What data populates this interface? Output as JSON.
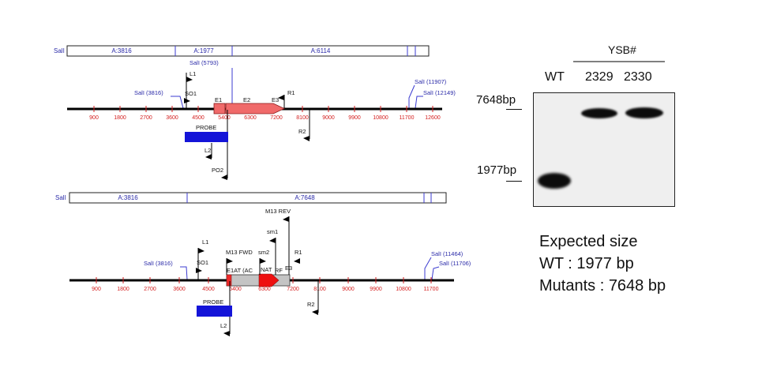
{
  "maps": [
    {
      "id": "wt",
      "fragments": [
        {
          "label": "SalI",
          "pos": 0
        },
        {
          "label": "A:3816"
        },
        {
          "label": "A:1977"
        },
        {
          "label": "A:6114"
        }
      ],
      "sites": [
        {
          "label": "SalI (3816)"
        },
        {
          "label": "SalI (5793)"
        },
        {
          "label": "SalI (11907)"
        },
        {
          "label": "SalI (12149)"
        }
      ],
      "primers": [
        {
          "label": "L1"
        },
        {
          "label": "SO1"
        },
        {
          "label": "R1"
        },
        {
          "label": "R2"
        },
        {
          "label": "L2"
        },
        {
          "label": "PO2"
        }
      ],
      "features": [
        {
          "label": "E1"
        },
        {
          "label": "E2"
        },
        {
          "label": "E3"
        },
        {
          "label": "PROBE"
        }
      ],
      "scale": [
        "900",
        "1800",
        "2700",
        "3600",
        "4500",
        "5400",
        "6300",
        "7200",
        "8100",
        "9000",
        "9900",
        "10800",
        "11700",
        "12600"
      ]
    },
    {
      "id": "mutant",
      "fragments": [
        {
          "label": "SalI"
        },
        {
          "label": "A:3816"
        },
        {
          "label": "A:7648"
        }
      ],
      "sites": [
        {
          "label": "SalI (3816)"
        },
        {
          "label": "SalI (11464)"
        },
        {
          "label": "SalI (11706)"
        }
      ],
      "primers": [
        {
          "label": "M13 REV"
        },
        {
          "label": "sm1"
        },
        {
          "label": "L1"
        },
        {
          "label": "M13 FWD"
        },
        {
          "label": "sm2"
        },
        {
          "label": "SO1"
        },
        {
          "label": "R1"
        },
        {
          "label": "R2"
        },
        {
          "label": "L2"
        }
      ],
      "features": [
        {
          "label": "E1AT (AC"
        },
        {
          "label": "NAT"
        },
        {
          "label": "RF"
        },
        {
          "label": "E3"
        },
        {
          "label": "PROBE"
        }
      ],
      "scale": [
        "900",
        "1800",
        "2700",
        "3600",
        "4500",
        "5400",
        "6300",
        "7200",
        "8100",
        "9000",
        "9900",
        "10800",
        "11700"
      ]
    }
  ],
  "gel": {
    "group_label": "YSB#",
    "lanes": [
      "WT",
      "2329",
      "2330"
    ],
    "markers": [
      "7648bp",
      "1977bp"
    ]
  },
  "expected": {
    "title": "Expected size",
    "wt": "WT : 1977 bp",
    "mutants": "Mutants : 7648 bp"
  },
  "colors": {
    "exon": "#f06a6a",
    "probe": "#1414d8",
    "nat": "#ee1010",
    "cassette": "#c4c4c4",
    "site": "#3b3bd0",
    "scale": "#d42020"
  }
}
